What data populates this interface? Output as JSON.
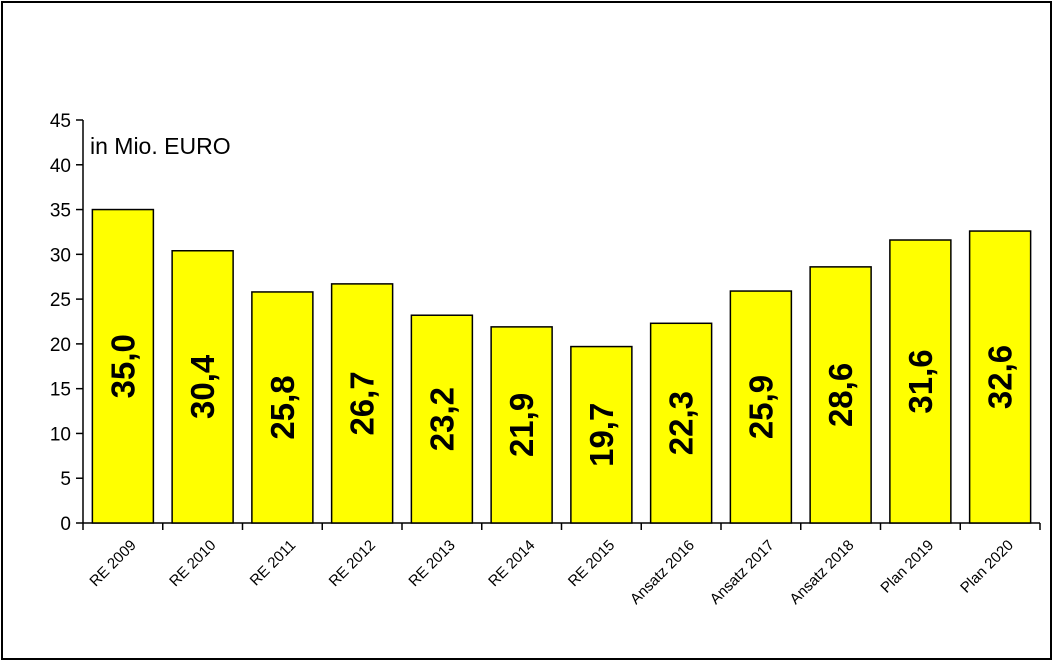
{
  "chart_data": {
    "type": "bar",
    "unit_note": "in Mio. EURO",
    "categories": [
      "RE 2009",
      "RE 2010",
      "RE 2011",
      "RE 2012",
      "RE 2013",
      "RE 2014",
      "RE 2015",
      "Ansatz 2016",
      "Ansatz 2017",
      "Ansatz 2018",
      "Plan 2019",
      "Plan 2020"
    ],
    "values": [
      35.0,
      30.4,
      25.8,
      26.7,
      23.2,
      21.9,
      19.7,
      22.3,
      25.9,
      28.6,
      31.6,
      32.6
    ],
    "value_labels": [
      "35,0",
      "30,4",
      "25,8",
      "26,7",
      "23,2",
      "21,9",
      "19,7",
      "22,3",
      "25,9",
      "28,6",
      "31,6",
      "32,6"
    ],
    "y_ticks": [
      "0",
      "5",
      "10",
      "15",
      "20",
      "25",
      "30",
      "35",
      "40",
      "45"
    ],
    "ylim": [
      0,
      45
    ],
    "grid": false,
    "legend": "none",
    "colors": {
      "bar_fill": "#ffff00",
      "bar_stroke": "#000000",
      "axis": "#000000"
    }
  }
}
